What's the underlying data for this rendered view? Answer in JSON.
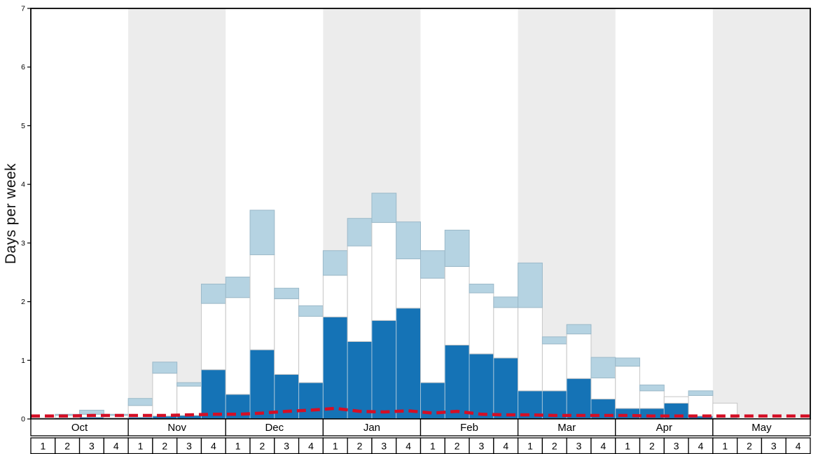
{
  "chart_data": {
    "type": "bar",
    "stacked": true,
    "title": "",
    "ylabel": "Days per week",
    "ylim": [
      0,
      7
    ],
    "yticks": [
      0,
      1,
      2,
      3,
      4,
      5,
      6,
      7
    ],
    "grid": false,
    "legend": "none",
    "months": [
      "Oct",
      "Nov",
      "Dec",
      "Jan",
      "Feb",
      "Mar",
      "Apr",
      "May"
    ],
    "week_labels": [
      "1",
      "2",
      "3",
      "4"
    ],
    "colors": {
      "band": "#ececec",
      "red_line": "#d40f26",
      "frame": "#000000",
      "dark_blue": "#1573b6",
      "light_blue": "#b5d3e2"
    },
    "series": [
      {
        "name": "dark-blue-bottom",
        "color": "#1573b6",
        "stroke": "#9fc0d6",
        "values": [
          0.0,
          0.02,
          0.03,
          0.02,
          0.03,
          0.05,
          0.06,
          0.84,
          0.42,
          1.18,
          0.76,
          0.62,
          1.74,
          1.32,
          1.68,
          1.89,
          0.62,
          1.26,
          1.11,
          1.04,
          0.48,
          0.48,
          0.69,
          0.34,
          0.18,
          0.18,
          0.27,
          0.05,
          0.02,
          0.0,
          0.0,
          0.0
        ]
      },
      {
        "name": "white-middle",
        "color": "#ffffff",
        "stroke": "#c6c6c6",
        "values": [
          0.02,
          0.04,
          0.05,
          0.04,
          0.2,
          0.73,
          0.5,
          1.13,
          1.65,
          1.62,
          1.29,
          1.13,
          0.71,
          1.63,
          1.67,
          0.84,
          1.78,
          1.34,
          1.04,
          0.86,
          1.42,
          0.8,
          0.76,
          0.36,
          0.72,
          0.3,
          0.11,
          0.35,
          0.25,
          0.0,
          0.0,
          0.0
        ]
      },
      {
        "name": "light-blue-top",
        "color": "#b5d3e2",
        "stroke": "#9bb9c9",
        "values": [
          0.0,
          0.02,
          0.07,
          0.02,
          0.12,
          0.19,
          0.06,
          0.33,
          0.35,
          0.76,
          0.18,
          0.18,
          0.42,
          0.47,
          0.5,
          0.63,
          0.47,
          0.62,
          0.15,
          0.18,
          0.76,
          0.12,
          0.16,
          0.35,
          0.14,
          0.1,
          0.0,
          0.08,
          0.0,
          0.0,
          0.0,
          0.0
        ]
      }
    ],
    "average_line": {
      "name": "red-dashed-average",
      "color": "#d40f26",
      "values": [
        0.05,
        0.05,
        0.06,
        0.06,
        0.06,
        0.06,
        0.07,
        0.08,
        0.08,
        0.1,
        0.13,
        0.15,
        0.18,
        0.13,
        0.12,
        0.14,
        0.1,
        0.13,
        0.08,
        0.07,
        0.07,
        0.06,
        0.06,
        0.06,
        0.06,
        0.05,
        0.05,
        0.05,
        0.05,
        0.05,
        0.05,
        0.05
      ]
    }
  }
}
